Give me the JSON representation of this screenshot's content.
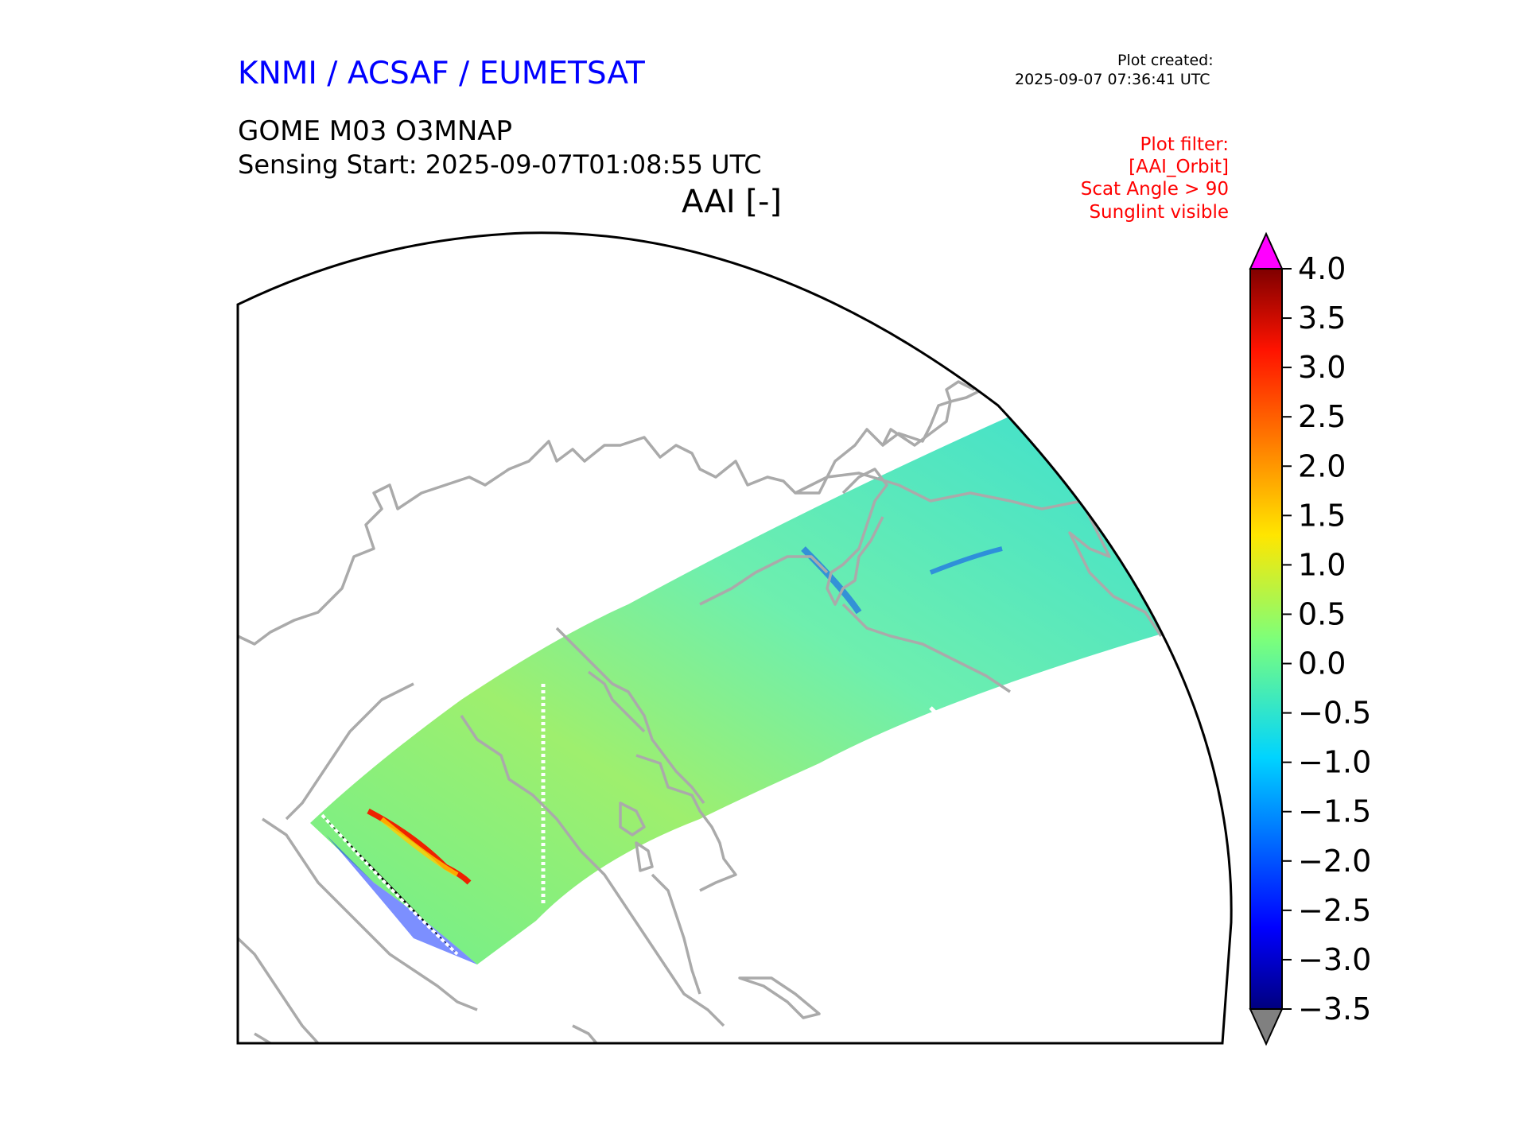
{
  "header": {
    "organization": "KNMI / ACSAF / EUMETSAT",
    "product": "GOME M03 O3MNAP",
    "sensing_start": "Sensing Start: 2025-09-07T01:08:55 UTC",
    "variable": "AAI [-]"
  },
  "plot_created": {
    "label": "Plot created:",
    "time": "2025-09-07 07:36:41 UTC"
  },
  "plot_filter": {
    "title": "Plot filter:",
    "items": [
      "[AAI_Orbit]",
      "Scat Angle > 90",
      "Sunglint visible"
    ]
  },
  "colorbar": {
    "min": -3.5,
    "max": 4.0,
    "ticks": [
      "4.0",
      "3.5",
      "3.0",
      "2.5",
      "2.0",
      "1.5",
      "1.0",
      "0.5",
      "0.0",
      "−0.5",
      "−1.0",
      "−1.5",
      "−2.0",
      "−2.5",
      "−3.0",
      "−3.5"
    ],
    "tick_values": [
      4.0,
      3.5,
      3.0,
      2.5,
      2.0,
      1.5,
      1.0,
      0.5,
      0.0,
      -0.5,
      -1.0,
      -1.5,
      -2.0,
      -2.5,
      -3.0,
      -3.5
    ],
    "over_color": "#ff00ff",
    "under_color": "#808080"
  },
  "map": {
    "coastline_color": "#aaaaaa",
    "border_color": "#000000"
  }
}
